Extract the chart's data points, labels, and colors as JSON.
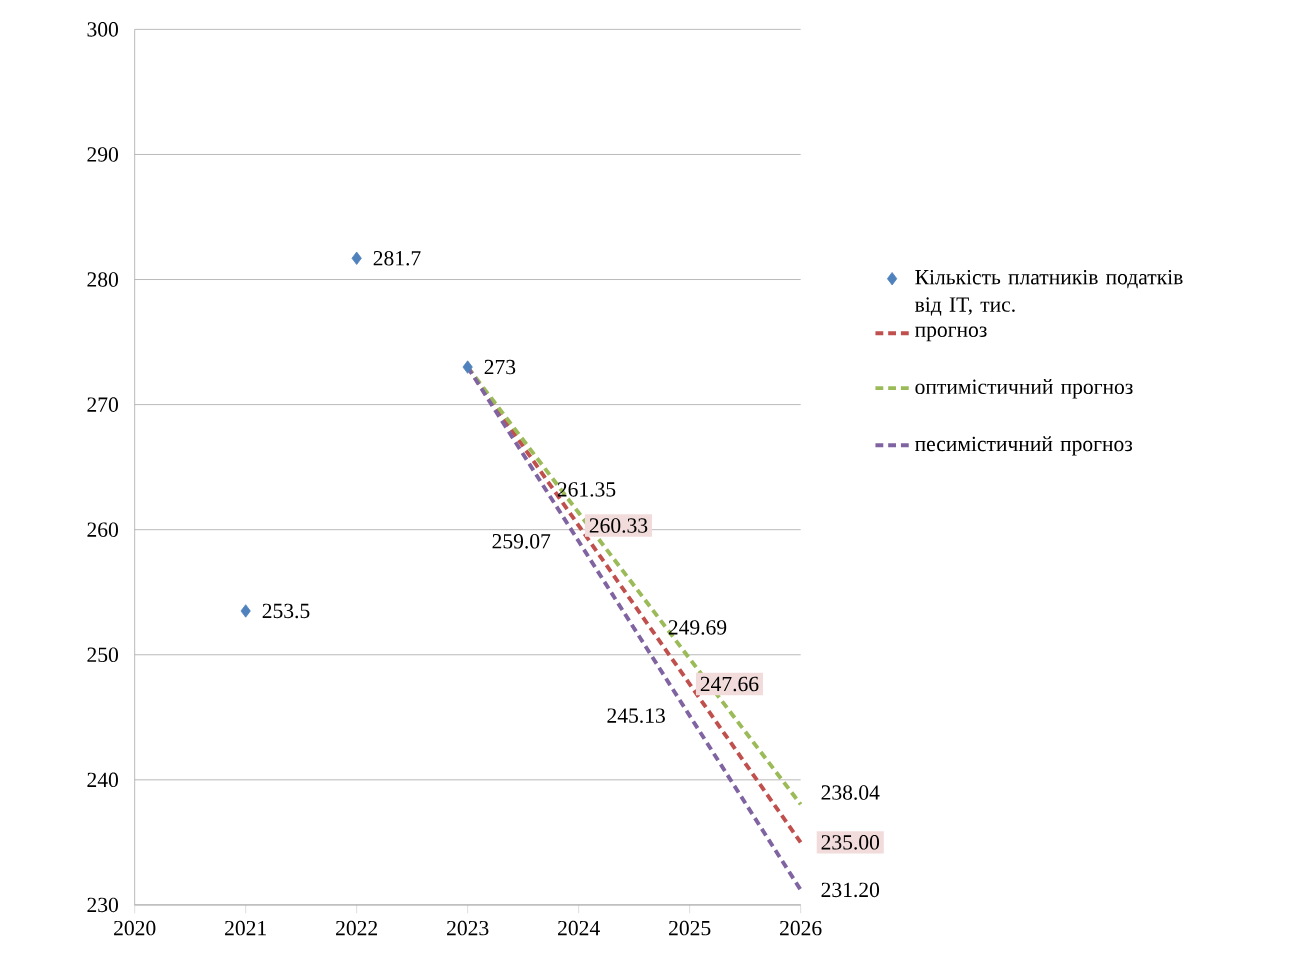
{
  "chart_data": {
    "type": "line",
    "xlim": [
      2020,
      2026
    ],
    "ylim": [
      230,
      300
    ],
    "xticks": [
      2020,
      2021,
      2022,
      2023,
      2024,
      2025,
      2026
    ],
    "yticks": [
      230,
      240,
      250,
      260,
      270,
      280,
      290,
      300
    ],
    "grid": "y",
    "legend": "right",
    "line_style": "dashed",
    "marker": "none",
    "series": [
      {
        "name": "Кількість платників податків від IT, тис.",
        "type": "scatter",
        "marker": "diamond",
        "color": "#4f81bd",
        "x": [
          2021,
          2022,
          2023
        ],
        "values": [
          253.5,
          281.7,
          273
        ],
        "value_labels": [
          "253.5",
          "281.7",
          "273"
        ]
      },
      {
        "name": "прогноз",
        "color": "#c0504d",
        "x": [
          2023,
          2024,
          2025,
          2026
        ],
        "values": [
          273,
          260.33,
          247.66,
          235.0
        ],
        "value_labels": [
          null,
          "260.33",
          "247.66",
          "235.00"
        ]
      },
      {
        "name": "оптимістичний прогноз",
        "color": "#9bbb59",
        "x": [
          2023,
          2024,
          2025,
          2026
        ],
        "values": [
          273,
          261.35,
          249.69,
          238.04
        ],
        "value_labels": [
          null,
          "261.35",
          "249.69",
          "238.04"
        ]
      },
      {
        "name": "песимістичний прогноз",
        "color": "#8064a2",
        "x": [
          2023,
          2024,
          2025,
          2026
        ],
        "values": [
          273,
          259.07,
          245.13,
          231.2
        ],
        "value_labels": [
          null,
          "259.07",
          "245.13",
          "231.20"
        ]
      }
    ]
  }
}
